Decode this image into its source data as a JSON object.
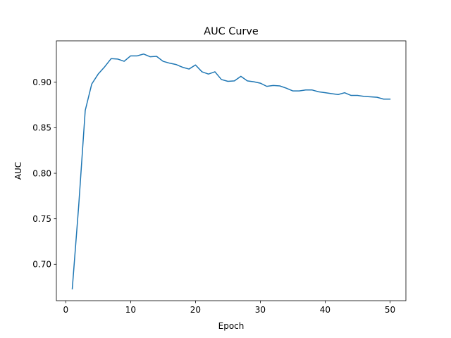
{
  "chart_data": {
    "type": "line",
    "title": "AUC Curve",
    "xlabel": "Epoch",
    "ylabel": "AUC",
    "xlim": [
      -1.45,
      52.45
    ],
    "ylim": [
      0.66,
      0.9455
    ],
    "xticks": [
      0,
      10,
      20,
      30,
      40,
      50
    ],
    "xtick_labels": [
      "0",
      "10",
      "20",
      "30",
      "40",
      "50"
    ],
    "yticks": [
      0.7,
      0.75,
      0.8,
      0.85,
      0.9
    ],
    "ytick_labels": [
      "0.70",
      "0.75",
      "0.80",
      "0.85",
      "0.90"
    ],
    "grid": false,
    "series": [
      {
        "name": "AUC",
        "color": "#1f77b4",
        "x": [
          1,
          2,
          3,
          4,
          5,
          6,
          7,
          8,
          9,
          10,
          11,
          12,
          13,
          14,
          15,
          16,
          17,
          18,
          19,
          20,
          21,
          22,
          23,
          24,
          25,
          26,
          27,
          28,
          29,
          30,
          31,
          32,
          33,
          34,
          35,
          36,
          37,
          38,
          39,
          40,
          41,
          42,
          43,
          44,
          45,
          46,
          47,
          48,
          49,
          50
        ],
        "values": [
          0.673,
          0.765,
          0.869,
          0.898,
          0.909,
          0.917,
          0.926,
          0.9255,
          0.923,
          0.929,
          0.929,
          0.931,
          0.928,
          0.9285,
          0.923,
          0.921,
          0.9195,
          0.9165,
          0.9145,
          0.919,
          0.9115,
          0.909,
          0.9115,
          0.903,
          0.901,
          0.9015,
          0.9065,
          0.9015,
          0.9005,
          0.899,
          0.8955,
          0.8965,
          0.896,
          0.8935,
          0.8905,
          0.8905,
          0.8915,
          0.8915,
          0.8895,
          0.8885,
          0.8875,
          0.8865,
          0.8885,
          0.8855,
          0.8855,
          0.8845,
          0.884,
          0.8835,
          0.8815,
          0.8815
        ]
      }
    ]
  }
}
